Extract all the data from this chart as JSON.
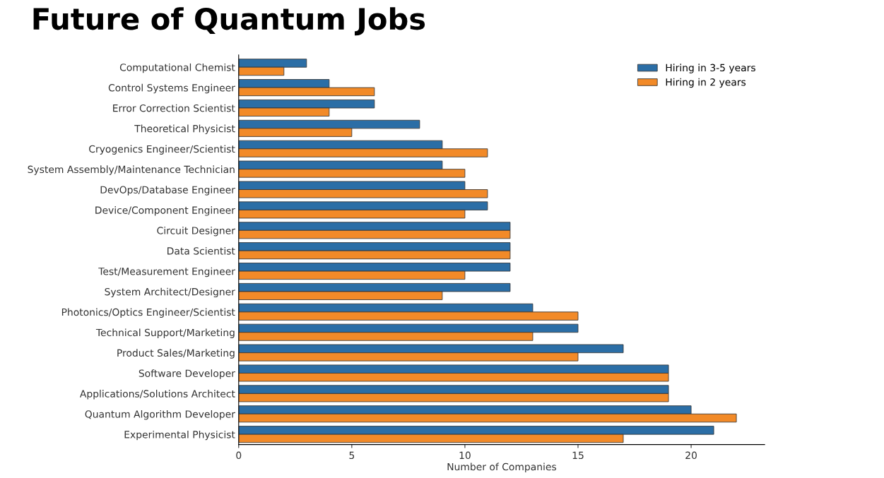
{
  "chart_data": {
    "type": "bar",
    "orientation": "horizontal",
    "title": "Future of Quantum Jobs",
    "xlabel": "Number of Companies",
    "categories": [
      "Computational Chemist",
      "Control Systems Engineer",
      "Error Correction Scientist",
      "Theoretical Physicist",
      "Cryogenics Engineer/Scientist",
      "System Assembly/Maintenance Technician",
      "DevOps/Database Engineer",
      "Device/Component Engineer",
      "Circuit Designer",
      "Data Scientist",
      "Test/Measurement Engineer",
      "System Architect/Designer",
      "Photonics/Optics Engineer/Scientist",
      "Technical Support/Marketing",
      "Product Sales/Marketing",
      "Software Developer",
      "Applications/Solutions Architect",
      "Quantum Algorithm Developer",
      "Experimental Physicist"
    ],
    "series": [
      {
        "name": "Hiring in 3-5 years",
        "color": "#2b6ea6",
        "values": [
          3,
          4,
          6,
          8,
          9,
          9,
          10,
          11,
          12,
          12,
          12,
          12,
          13,
          15,
          17,
          19,
          19,
          20,
          21
        ]
      },
      {
        "name": "Hiring in 2 years",
        "color": "#f28a28",
        "values": [
          2,
          6,
          4,
          5,
          11,
          10,
          11,
          10,
          12,
          12,
          10,
          9,
          15,
          13,
          15,
          19,
          19,
          22,
          17
        ]
      }
    ],
    "xlim": [
      0,
      23.25
    ],
    "xticks": [
      0,
      5,
      10,
      15,
      20
    ],
    "grid": false,
    "legend": "top right"
  }
}
